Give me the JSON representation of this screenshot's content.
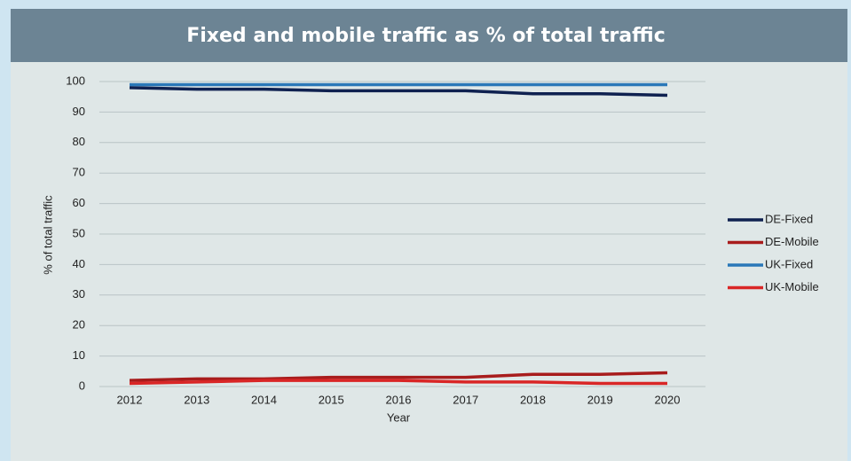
{
  "chart_data": {
    "type": "line",
    "title": "Fixed and mobile traffic as % of total traffic",
    "x_label": "Year",
    "y_label": "% of total traffic",
    "categories": [
      "2012",
      "2013",
      "2014",
      "2015",
      "2016",
      "2017",
      "2018",
      "2019",
      "2020"
    ],
    "series": [
      {
        "name": "DE-Fixed",
        "color": "#0f2150",
        "values": [
          98,
          97.5,
          97.5,
          97,
          97,
          97,
          96,
          96,
          95.5
        ]
      },
      {
        "name": "DE-Mobile",
        "color": "#a81c1c",
        "values": [
          2,
          2.5,
          2.5,
          3,
          3,
          3,
          4,
          4,
          4.5
        ]
      },
      {
        "name": "UK-Fixed",
        "color": "#2a78b8",
        "values": [
          99,
          99,
          99,
          99,
          99,
          99,
          99,
          99,
          99
        ]
      },
      {
        "name": "UK-Mobile",
        "color": "#d92626",
        "values": [
          1,
          1.5,
          2,
          2,
          2,
          1.5,
          1.5,
          1,
          1
        ]
      }
    ],
    "ylim": [
      0,
      100
    ],
    "yticks": [
      0,
      10,
      20,
      30,
      40,
      50,
      60,
      70,
      80,
      90,
      100
    ],
    "grid": true,
    "legend": "right"
  }
}
